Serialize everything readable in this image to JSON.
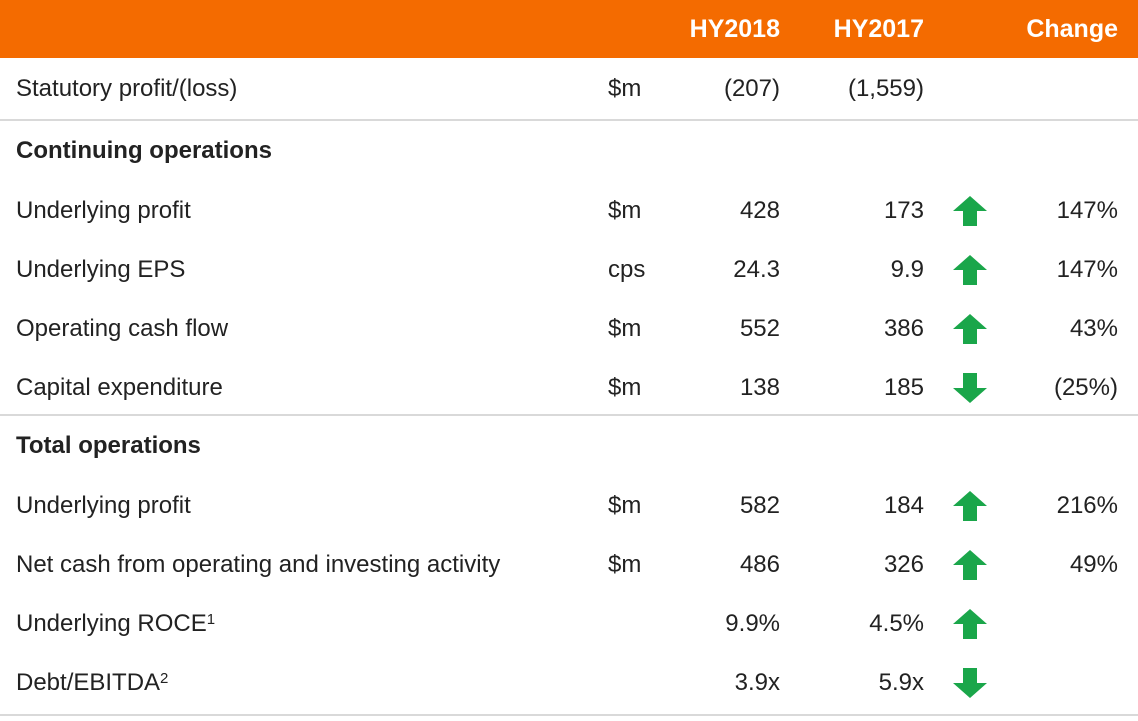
{
  "colors": {
    "header_bg": "#f46b00",
    "up": "#1aa64a",
    "down": "#1aa64a",
    "divider": "#d9d9d9"
  },
  "header": {
    "col_hy2018": "HY2018",
    "col_hy2017": "HY2017",
    "col_change": "Change"
  },
  "statutory": {
    "label": "Statutory profit/(loss)",
    "unit": "$m",
    "hy2018": "(207)",
    "hy2017": "(1,559)"
  },
  "continuing": {
    "title": "Continuing operations",
    "rows": [
      {
        "label": "Underlying profit",
        "unit": "$m",
        "hy2018": "428",
        "hy2017": "173",
        "arrow": "up-arrow-icon",
        "change": "147%"
      },
      {
        "label": "Underlying EPS",
        "unit": "cps",
        "hy2018": "24.3",
        "hy2017": "9.9",
        "arrow": "up-arrow-icon",
        "change": "147%"
      },
      {
        "label": "Operating cash flow",
        "unit": "$m",
        "hy2018": "552",
        "hy2017": "386",
        "arrow": "up-arrow-icon",
        "change": "43%"
      },
      {
        "label": "Capital expenditure",
        "unit": "$m",
        "hy2018": "138",
        "hy2017": "185",
        "arrow": "down-arrow-icon",
        "change": "(25%)"
      }
    ]
  },
  "total": {
    "title": "Total operations",
    "rows": [
      {
        "label": "Underlying profit",
        "unit": "$m",
        "hy2018": "582",
        "hy2017": "184",
        "arrow": "up-arrow-icon",
        "change": "216%"
      },
      {
        "label": "Net cash from operating and investing activity",
        "unit": "$m",
        "hy2018": "486",
        "hy2017": "326",
        "arrow": "up-arrow-icon",
        "change": "49%"
      },
      {
        "label": "Underlying ROCE",
        "footnote": "1",
        "unit": "",
        "hy2018": "9.9%",
        "hy2017": "4.5%",
        "arrow": "up-arrow-icon",
        "change": ""
      },
      {
        "label": "Debt/EBITDA",
        "footnote": "2",
        "unit": "",
        "hy2018": "3.9x",
        "hy2017": "5.9x",
        "arrow": "down-arrow-icon",
        "change": ""
      }
    ]
  }
}
